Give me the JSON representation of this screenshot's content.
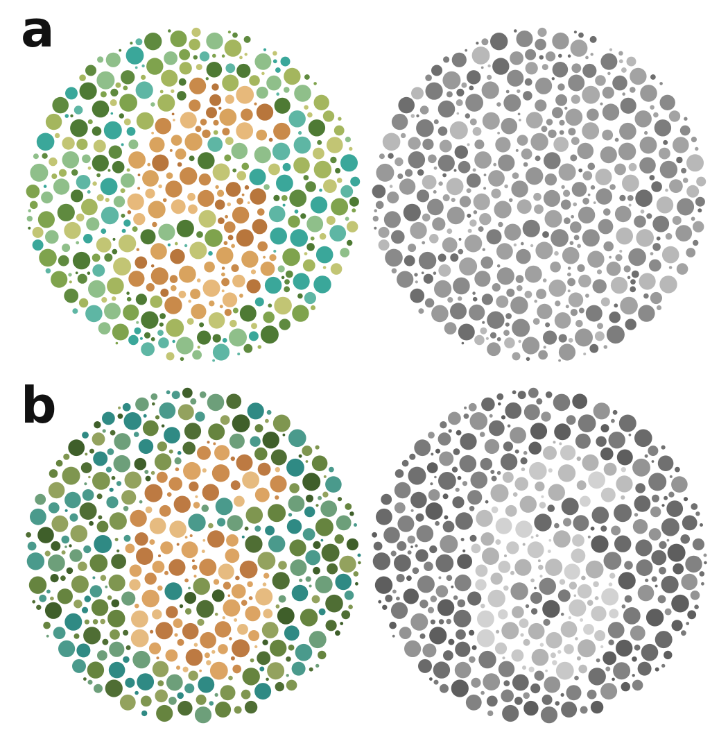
{
  "figure": {
    "panels": [
      {
        "label": "a",
        "plates": [
          {
            "rendering": "color",
            "palette": {
              "background": [
                "#5f8a3f",
                "#7fa34d",
                "#a4b65e",
                "#c2c574",
                "#3aa79a",
                "#5eb6a4",
                "#8fbf8a",
                "#4e7a34"
              ],
              "figure": [
                "#d9a35e",
                "#c98a4a",
                "#e7b97b",
                "#b8763c"
              ]
            }
          },
          {
            "rendering": "grayscale",
            "palette": {
              "background": [
                "#6e6e6e",
                "#8a8a8a",
                "#a3a3a3",
                "#b8b8b8",
                "#999999",
                "#7d7d7d"
              ],
              "figure": [
                "#a0a0a0",
                "#959595",
                "#aaaaaa",
                "#8f8f8f"
              ]
            }
          }
        ]
      },
      {
        "label": "b",
        "plates": [
          {
            "rendering": "color",
            "palette": {
              "background": [
                "#4f6e34",
                "#66843f",
                "#7f9650",
                "#93a25e",
                "#2f8a84",
                "#4a9a8c",
                "#6d9f7a",
                "#3f5f2a"
              ],
              "figure": [
                "#dca463",
                "#cc8c4e",
                "#e6bb80",
                "#bd7a42"
              ]
            }
          },
          {
            "rendering": "grayscale",
            "palette": {
              "background": [
                "#5e5e5e",
                "#707070",
                "#828282",
                "#949494",
                "#6a6a6a",
                "#7a7a7a"
              ],
              "figure": [
                "#c8c8c8",
                "#bdbdbd",
                "#d2d2d2",
                "#b3b3b3"
              ]
            }
          }
        ]
      }
    ]
  }
}
